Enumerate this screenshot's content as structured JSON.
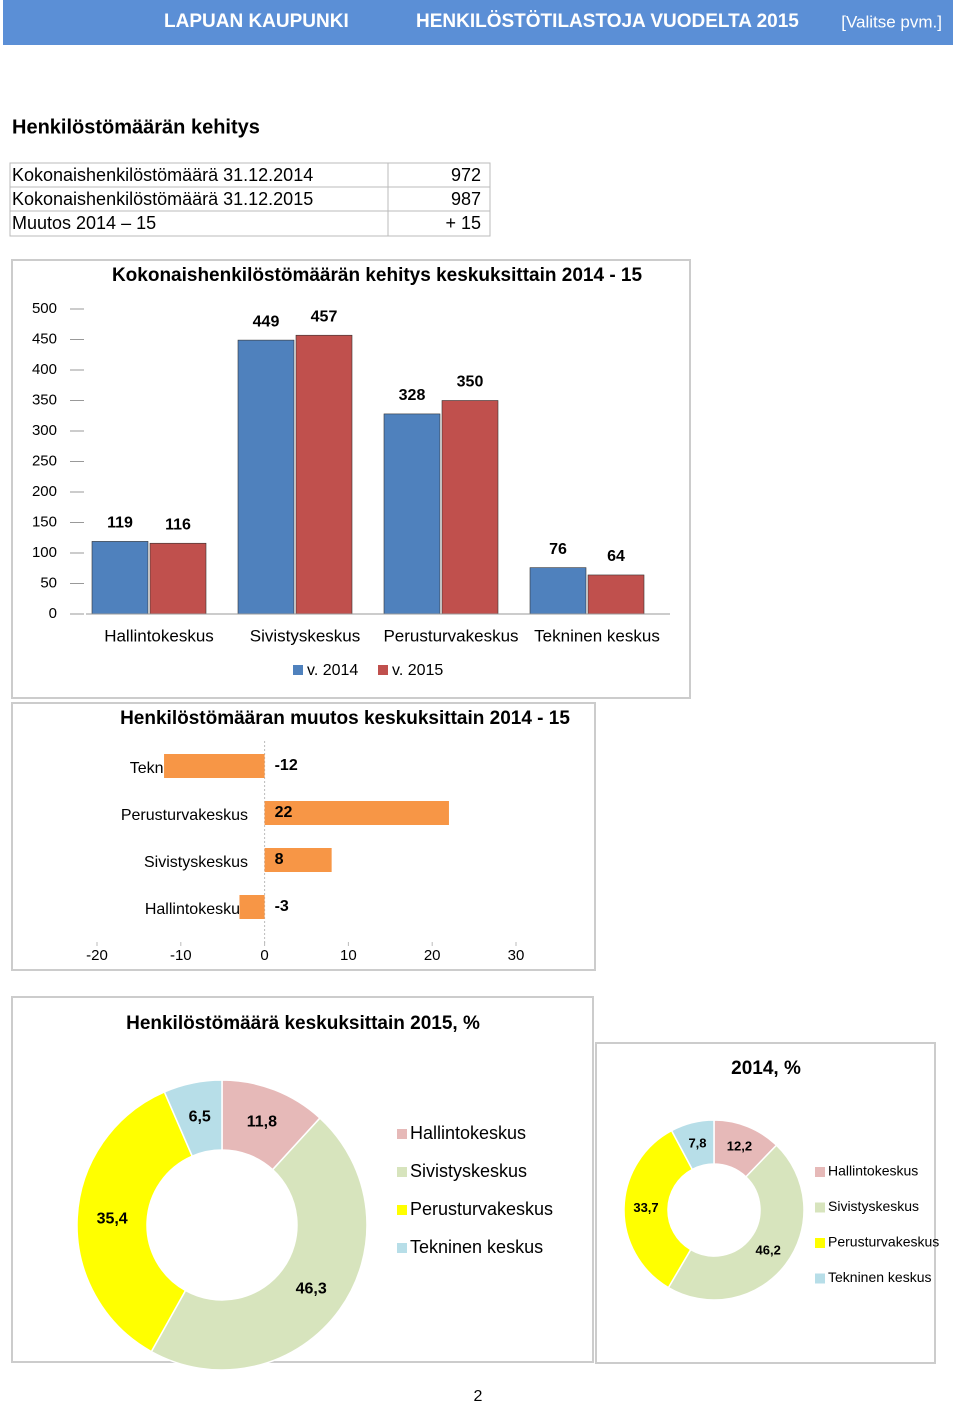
{
  "header": {
    "left": "LAPUAN KAUPUNKI",
    "center": "HENKILÖSTÖTILASTOJA VUODELTA 2015",
    "right": "[Valitse pvm.]"
  },
  "section_title": "Henkilöstömäärän kehitys",
  "table": {
    "rows": [
      [
        "Kokonaishenkilöstömäärä 31.12.2014",
        972
      ],
      [
        "Kokonaishenkilöstömäärä 31.12.2015",
        987
      ],
      [
        "Muutos 2014 – 15",
        "+ 15"
      ]
    ]
  },
  "chart_data": [
    {
      "type": "bar",
      "title": "Kokonaishenkilöstömäärän kehitys keskuksittain 2014 - 15",
      "categories": [
        "Hallintokeskus",
        "Sivistyskeskus",
        "Perusturvakeskus",
        "Tekninen keskus"
      ],
      "series": [
        {
          "name": "v. 2014",
          "color": "#4f81bd",
          "values": [
            119,
            449,
            328,
            76
          ]
        },
        {
          "name": "v. 2015",
          "color": "#c0504d",
          "values": [
            116,
            457,
            350,
            64
          ]
        }
      ],
      "ylim": [
        0,
        500
      ],
      "yticks": [
        0,
        50,
        100,
        150,
        200,
        250,
        300,
        350,
        400,
        450,
        500
      ],
      "legend": "bottom"
    },
    {
      "type": "barh",
      "title": "Henkilöstömääran muutos keskuksittain 2014 - 15",
      "categories": [
        "Tekninen keskus",
        "Perusturvakeskus",
        "Sivistyskeskus",
        "Hallintokeskus"
      ],
      "values": [
        -12,
        22,
        8,
        -3
      ],
      "color": "#f79646",
      "xlim": [
        -20,
        30
      ],
      "xticks": [
        -20,
        -10,
        0,
        10,
        20,
        30
      ]
    },
    {
      "type": "doughnut",
      "title": "Henkilöstömäärä keskuksittain  2015, %",
      "categories": [
        "Hallintokeskus",
        "Sivistyskeskus",
        "Perusturvakeskus",
        "Tekninen keskus"
      ],
      "values": [
        11.8,
        46.3,
        35.4,
        6.5
      ],
      "value_labels": [
        "11,8",
        "46,3",
        "35,4",
        "6,5"
      ],
      "colors": [
        "#e6b9b8",
        "#d7e4bd",
        "#ffff00",
        "#b7dee8"
      ],
      "legend": "right"
    },
    {
      "type": "doughnut",
      "title": "2014, %",
      "categories": [
        "Hallintokeskus",
        "Sivistyskeskus",
        "Perusturvakeskus",
        "Tekninen keskus"
      ],
      "values": [
        12.2,
        46.2,
        33.7,
        7.8
      ],
      "value_labels": [
        "12,2",
        "46,2",
        "33,7",
        "7,8"
      ],
      "colors": [
        "#e6b9b8",
        "#d7e4bd",
        "#ffff00",
        "#b7dee8"
      ],
      "legend": "right"
    }
  ],
  "page_number": "2"
}
